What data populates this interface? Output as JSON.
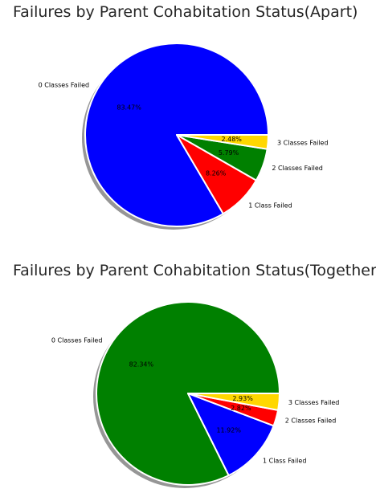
{
  "chart_data": [
    {
      "type": "pie",
      "title": "Failures by Parent Cohabitation Status(Apart)",
      "labels": [
        "0 Classes Failed",
        "1 Class Failed",
        "2 Classes Failed",
        "3 Classes Failed"
      ],
      "values": [
        83.47,
        8.26,
        5.79,
        2.48
      ],
      "value_labels": [
        "83.47%",
        "8.26%",
        "5.79%",
        "2.48%"
      ],
      "colors": [
        "#0000ff",
        "#ff0000",
        "#008000",
        "#ffd700"
      ],
      "start_angle": 0,
      "counterclockwise": true,
      "shadow": true
    },
    {
      "type": "pie",
      "title": "Failures by Parent Cohabitation Status(Together)",
      "labels": [
        "0 Classes Failed",
        "1 Class Failed",
        "2 Classes Failed",
        "3 Classes Failed"
      ],
      "values": [
        82.34,
        11.92,
        2.82,
        2.93
      ],
      "value_labels": [
        "82.34%",
        "11.92%",
        "2.82%",
        "2.93%"
      ],
      "colors": [
        "#008000",
        "#0000ff",
        "#ff0000",
        "#ffd700"
      ],
      "start_angle": 0,
      "counterclockwise": true,
      "shadow": true
    }
  ]
}
